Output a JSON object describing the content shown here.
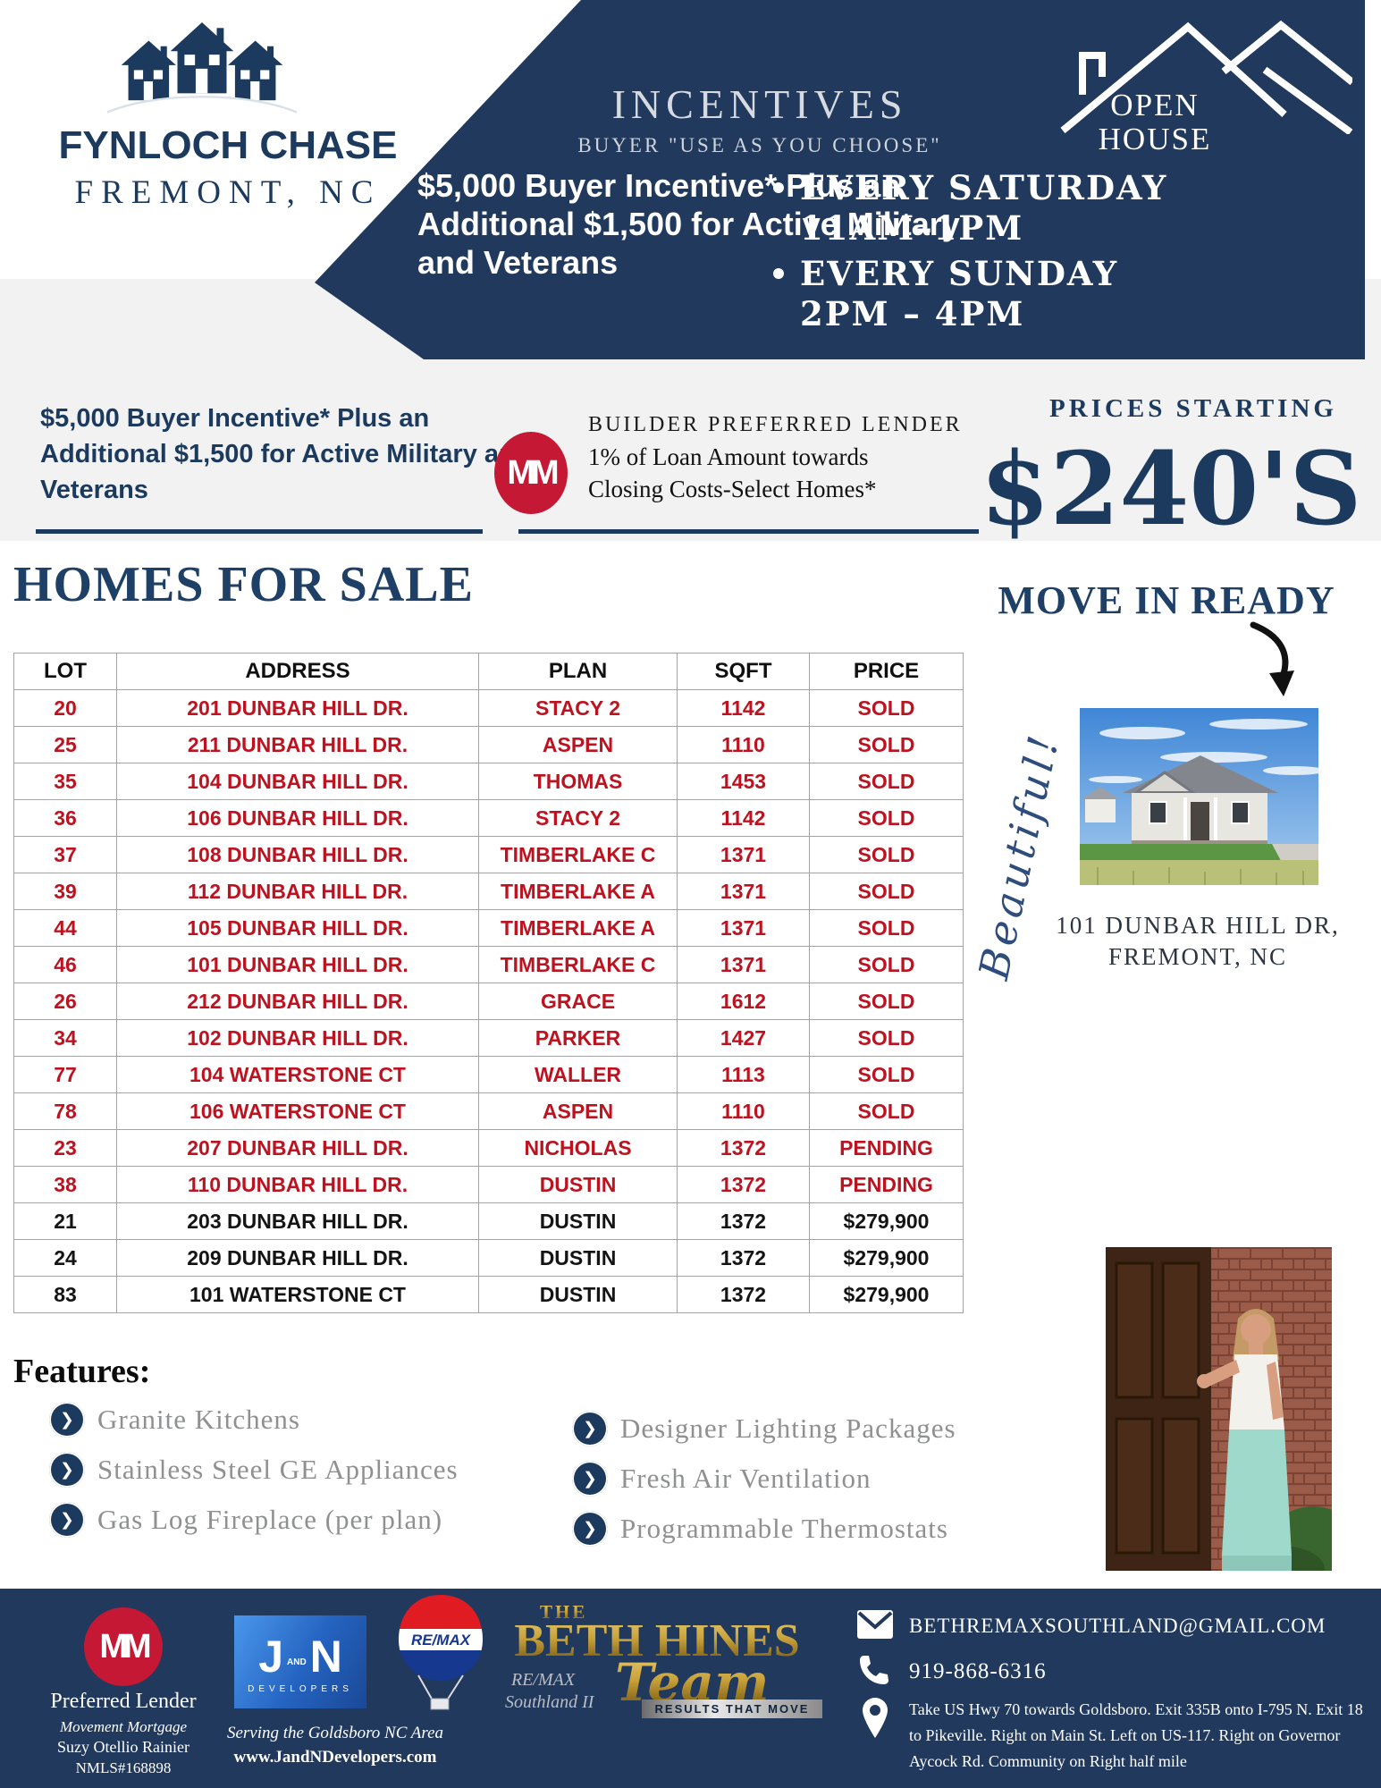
{
  "colors": {
    "navy": "#21395c",
    "brand_navy": "#1c3a5e",
    "table_red": "#bd1320",
    "mm_red": "#c41834",
    "gold": "#c9a23a",
    "band_gray": "#f2f2f3"
  },
  "logo": {
    "community": "FYNLOCH CHASE",
    "location": "FREMONT, NC",
    "icon": "houses-on-hill-icon"
  },
  "header": {
    "incentives_title": "INCENTIVES",
    "incentives_subtitle": "BUYER \"USE AS YOU CHOOSE\"",
    "incentive_text": "$5,000 Buyer Incentive* Plus an Additional $1,500 for Active Military and Veterans",
    "open_house": {
      "title_line1": "OPEN",
      "title_line2": "HOUSE",
      "icon": "roof-outline-icon",
      "schedule": [
        {
          "day": "EVERY SATURDAY",
          "time": "11AM–1PM"
        },
        {
          "day": "EVERY SUNDAY",
          "time": "2PM – 4PM"
        }
      ]
    }
  },
  "band": {
    "incentive_text": "$5,000 Buyer Incentive* Plus an Additional $1,500 for Active Military and Veterans",
    "lender_logo_letters": "MM",
    "lender_title": "BUILDER PREFERRED LENDER",
    "lender_line1": "1% of Loan Amount towards",
    "lender_line2": "Closing Costs-Select Homes*",
    "prices_label": "PRICES STARTING",
    "prices_value": "$240'S"
  },
  "homes": {
    "title": "HOMES FOR SALE",
    "move_in_ready": "MOVE IN READY",
    "columns": [
      "LOT",
      "ADDRESS",
      "PLAN",
      "SQFT",
      "PRICE"
    ],
    "rows": [
      {
        "lot": "20",
        "address": "201 DUNBAR HILL DR.",
        "plan": "STACY 2",
        "sqft": "1142",
        "price": "SOLD",
        "status": "sold"
      },
      {
        "lot": "25",
        "address": "211 DUNBAR HILL DR.",
        "plan": "ASPEN",
        "sqft": "1110",
        "price": "SOLD",
        "status": "sold"
      },
      {
        "lot": "35",
        "address": "104 DUNBAR HILL DR.",
        "plan": "THOMAS",
        "sqft": "1453",
        "price": "SOLD",
        "status": "sold"
      },
      {
        "lot": "36",
        "address": "106 DUNBAR HILL DR.",
        "plan": "STACY 2",
        "sqft": "1142",
        "price": "SOLD",
        "status": "sold"
      },
      {
        "lot": "37",
        "address": "108 DUNBAR HILL DR.",
        "plan": "TIMBERLAKE C",
        "sqft": "1371",
        "price": "SOLD",
        "status": "sold"
      },
      {
        "lot": "39",
        "address": "112 DUNBAR HILL DR.",
        "plan": "TIMBERLAKE A",
        "sqft": "1371",
        "price": "SOLD",
        "status": "sold"
      },
      {
        "lot": "44",
        "address": "105 DUNBAR HILL DR.",
        "plan": "TIMBERLAKE A",
        "sqft": "1371",
        "price": "SOLD",
        "status": "sold"
      },
      {
        "lot": "46",
        "address": "101 DUNBAR HILL DR.",
        "plan": "TIMBERLAKE C",
        "sqft": "1371",
        "price": "SOLD",
        "status": "sold"
      },
      {
        "lot": "26",
        "address": "212 DUNBAR HILL DR.",
        "plan": "GRACE",
        "sqft": "1612",
        "price": "SOLD",
        "status": "sold"
      },
      {
        "lot": "34",
        "address": "102 DUNBAR HILL DR.",
        "plan": "PARKER",
        "sqft": "1427",
        "price": "SOLD",
        "status": "sold"
      },
      {
        "lot": "77",
        "address": "104 WATERSTONE CT",
        "plan": "WALLER",
        "sqft": "1113",
        "price": "SOLD",
        "status": "sold"
      },
      {
        "lot": "78",
        "address": "106 WATERSTONE CT",
        "plan": "ASPEN",
        "sqft": "1110",
        "price": "SOLD",
        "status": "sold"
      },
      {
        "lot": "23",
        "address": "207 DUNBAR HILL DR.",
        "plan": "NICHOLAS",
        "sqft": "1372",
        "price": "PENDING",
        "status": "pending"
      },
      {
        "lot": "38",
        "address": "110 DUNBAR HILL DR.",
        "plan": "DUSTIN",
        "sqft": "1372",
        "price": "PENDING",
        "status": "pending"
      },
      {
        "lot": "21",
        "address": "203 DUNBAR HILL DR.",
        "plan": "DUSTIN",
        "sqft": "1372",
        "price": "$279,900",
        "status": "available"
      },
      {
        "lot": "24",
        "address": "209 DUNBAR HILL DR.",
        "plan": "DUSTIN",
        "sqft": "1372",
        "price": "$279,900",
        "status": "available"
      },
      {
        "lot": "83",
        "address": "101 WATERSTONE CT",
        "plan": "DUSTIN",
        "sqft": "1372",
        "price": "$279,900",
        "status": "available"
      }
    ],
    "script_note": "Beautiful!",
    "photo_caption_line1": "101 DUNBAR HILL DR,",
    "photo_caption_line2": "FREMONT, NC"
  },
  "features": {
    "title": "Features:",
    "col1": [
      "Granite Kitchens",
      "Stainless Steel GE Appliances",
      "Gas Log Fireplace (per plan)"
    ],
    "col2": [
      "Designer Lighting Packages",
      "Fresh Air Ventilation",
      "Programmable Thermostats"
    ]
  },
  "footer": {
    "lender": {
      "logo_letters": "MM",
      "title": "Preferred Lender",
      "company": "Movement Mortgage",
      "agent": "Suzy Otellio Rainier",
      "nmls": "NMLS#168898"
    },
    "developer": {
      "letter_j": "J",
      "letter_and": "AND",
      "letter_n": "N",
      "logo_sub": "DEVELOPERS",
      "serving": "Serving the Goldsboro NC Area",
      "website": "www.JandNDevelopers.com"
    },
    "remax_balloon": "RE/MAX",
    "team": {
      "the": "THE",
      "name": "BETH HINES",
      "team_word": "Team",
      "office_line1": "RE/MAX",
      "office_line2": "Southland II",
      "tagline": "RESULTS THAT MOVE"
    },
    "contact": {
      "email": "BETHREMAXSOUTHLAND@GMAIL.COM",
      "phone": "919-868-6316",
      "directions": "Take US Hwy 70 towards Goldsboro. Exit 335B onto I-795 N. Exit 18 to Pikeville. Right on Main St. Left on US-117. Right on Governor Aycock Rd. Community on Right half mile"
    }
  }
}
